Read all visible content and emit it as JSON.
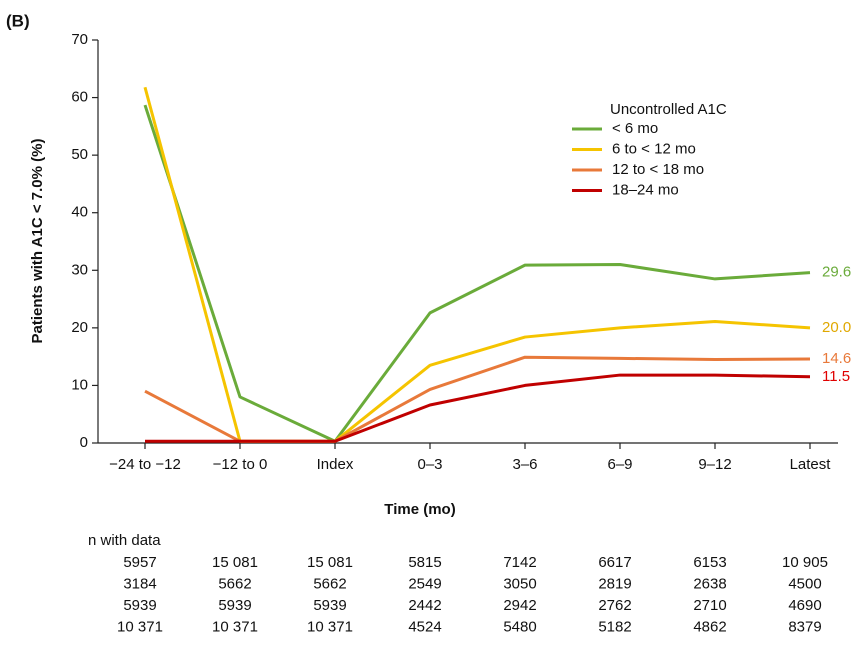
{
  "chart_data": {
    "type": "line",
    "panel_label": "(B)",
    "y_label": "Patients with A1C < 7.0% (%)",
    "x_label": "Time (mo)",
    "categories": [
      "−24 to −12",
      "−12 to 0",
      "Index",
      "0–3",
      "3–6",
      "6–9",
      "9–12",
      "Latest"
    ],
    "ylim": [
      0,
      70
    ],
    "yticks": [
      0,
      10,
      20,
      30,
      40,
      50,
      60,
      70
    ],
    "legend_title": "Uncontrolled A1C",
    "legend_position": "upper right",
    "series": [
      {
        "name": "< 6 mo",
        "color": "#6aab3a",
        "values": [
          58.7,
          8.0,
          0.3,
          22.6,
          30.9,
          31.0,
          28.5,
          29.6
        ],
        "value_labels": [
          null,
          null,
          null,
          null,
          null,
          null,
          null,
          "29.6"
        ]
      },
      {
        "name": "6 to < 12 mo",
        "color": "#f5c400",
        "values": [
          61.8,
          0.3,
          0.3,
          13.5,
          18.4,
          20.0,
          21.1,
          20.0
        ],
        "value_labels": [
          null,
          null,
          null,
          null,
          null,
          null,
          null,
          "20.0"
        ]
      },
      {
        "name": "12 to < 18 mo",
        "color": "#e8793a",
        "values": [
          9.0,
          0.3,
          0.3,
          9.3,
          14.9,
          14.7,
          14.5,
          14.6
        ],
        "value_labels": [
          null,
          null,
          null,
          null,
          null,
          null,
          null,
          "14.6"
        ]
      },
      {
        "name": "18–24 mo",
        "color": "#c00000",
        "values": [
          0.3,
          0.3,
          0.3,
          6.6,
          10.0,
          11.8,
          11.8,
          11.5
        ],
        "value_labels": [
          null,
          null,
          null,
          null,
          null,
          null,
          null,
          "11.5"
        ]
      }
    ],
    "table": {
      "title": "n with data",
      "rows": [
        [
          "5957",
          "15 081",
          "15 081",
          "5815",
          "7142",
          "6617",
          "6153",
          "10 905"
        ],
        [
          "3184",
          "5662",
          "5662",
          "2549",
          "3050",
          "2819",
          "2638",
          "4500"
        ],
        [
          "5939",
          "5939",
          "5939",
          "2442",
          "2942",
          "2762",
          "2710",
          "4690"
        ],
        [
          "10 371",
          "10 371",
          "10 371",
          "4524",
          "5480",
          "5182",
          "4862",
          "8379"
        ]
      ]
    }
  }
}
